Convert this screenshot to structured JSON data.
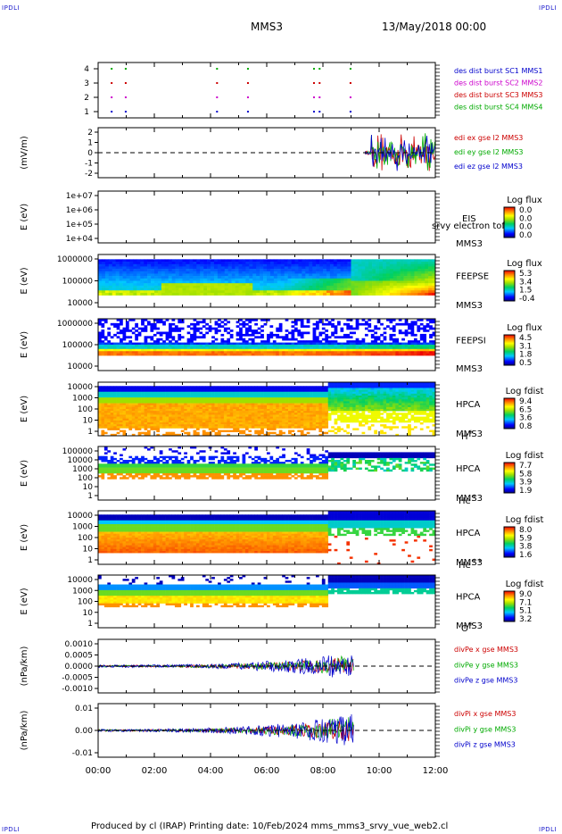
{
  "corner_labels": {
    "tl": "IPDLI",
    "tr": "IPDLI",
    "bl": "IPDLI",
    "br": "IPDLI"
  },
  "header": {
    "spacecraft": "MMS3",
    "date": "13/May/2018 00:00"
  },
  "footer": "Produced by cl (IRAP)   Printing date: 10/Feb/2024   mms_mms3_srvy_vue_web2.cl",
  "chart_data": [
    {
      "type": "scatter",
      "panel": "burst",
      "yticks": [
        "4",
        "3",
        "2",
        "1"
      ],
      "legend": [
        {
          "label": "des dist burst SC1 MMS1",
          "color": "#0000cc"
        },
        {
          "label": "des dist burst SC2 MMS2",
          "color": "#cc00cc"
        },
        {
          "label": "des dist burst SC3 MMS3",
          "color": "#cc0000"
        },
        {
          "label": "des dist burst SC4 MMS4",
          "color": "#00aa00"
        }
      ],
      "burst_times_hours": [
        0.45,
        0.95,
        4.2,
        5.3,
        7.65,
        7.85,
        8.95
      ]
    },
    {
      "type": "line",
      "panel": "edi",
      "ylabel": "(mV/m)",
      "yticks": [
        "2",
        "1",
        "0",
        "-1",
        "-2"
      ],
      "ylim": [
        -2.5,
        2.5
      ],
      "legend": [
        {
          "label": "edi ex gse l2 MMS3",
          "color": "#cc0000"
        },
        {
          "label": "edi ey gse l2 MMS3",
          "color": "#00aa00"
        },
        {
          "label": "edi ez gse l2 MMS3",
          "color": "#0000cc"
        }
      ],
      "data_start_hours": 9.5
    },
    {
      "type": "heatmap",
      "panel": "eis",
      "ylabel": "E (eV)",
      "yticks": [
        "1e+07",
        "1e+06",
        "1e+05",
        "1e+04"
      ],
      "labels": [
        "EIS",
        "srvy electron tof",
        "MMS3"
      ],
      "colorbar_title": "Log flux",
      "colorbar_ticks": [
        "0.0",
        "0.0",
        "0.0",
        "0.0"
      ]
    },
    {
      "type": "heatmap",
      "panel": "feepse",
      "ylabel": "E (eV)",
      "yticks": [
        "1000000",
        "100000",
        "10000"
      ],
      "labels": [
        "FEEPSE",
        "MMS3"
      ],
      "colorbar_title": "Log flux",
      "colorbar_ticks": [
        "5.3",
        "3.4",
        "1.5",
        "-0.4"
      ]
    },
    {
      "type": "heatmap",
      "panel": "feepsi",
      "ylabel": "E (eV)",
      "yticks": [
        "1000000",
        "100000",
        "10000"
      ],
      "labels": [
        "FEEPSI",
        "MMS3"
      ],
      "colorbar_title": "Log flux",
      "colorbar_ticks": [
        "4.5",
        "3.1",
        "1.8",
        "0.5"
      ]
    },
    {
      "type": "heatmap",
      "panel": "hpca_h",
      "ylabel": "E (eV)",
      "yticks": [
        "10000",
        "1000",
        "100",
        "10",
        "1"
      ],
      "labels": [
        "HPCA",
        "MMS3"
      ],
      "species": "H",
      "species_sup": "+",
      "colorbar_title": "Log fdist",
      "colorbar_ticks": [
        "9.4",
        "6.5",
        "3.6",
        "0.8"
      ]
    },
    {
      "type": "heatmap",
      "panel": "hpca_he",
      "ylabel": "E (eV)",
      "yticks": [
        "100000",
        "10000",
        "1000",
        "100",
        "10",
        "1"
      ],
      "labels": [
        "HPCA",
        "MMS3"
      ],
      "species": "He",
      "species_sup": "+",
      "colorbar_title": "Log fdist",
      "colorbar_ticks": [
        "7.7",
        "5.8",
        "3.9",
        "1.9"
      ]
    },
    {
      "type": "heatmap",
      "panel": "hpca_he2",
      "ylabel": "E (eV)",
      "yticks": [
        "10000",
        "1000",
        "100",
        "10",
        "1"
      ],
      "labels": [
        "HPCA",
        "MMS3"
      ],
      "species": "He",
      "species_sup": "++",
      "colorbar_title": "Log fdist",
      "colorbar_ticks": [
        "8.0",
        "5.9",
        "3.8",
        "1.6"
      ]
    },
    {
      "type": "heatmap",
      "panel": "hpca_o",
      "ylabel": "E (eV)",
      "yticks": [
        "10000",
        "1000",
        "100",
        "10",
        "1"
      ],
      "labels": [
        "HPCA",
        "MMS3"
      ],
      "species": "O",
      "species_sup": "+",
      "colorbar_title": "Log fdist",
      "colorbar_ticks": [
        "9.0",
        "7.1",
        "5.1",
        "3.2"
      ]
    },
    {
      "type": "line",
      "panel": "divpe",
      "ylabel": "(nPa/km)",
      "yticks": [
        "0.0010",
        "0.0005",
        "0.0000",
        "-0.0005",
        "-0.0010"
      ],
      "ylim": [
        -0.00125,
        0.00125
      ],
      "legend": [
        {
          "label": "divPe x gse MMS3",
          "color": "#cc0000"
        },
        {
          "label": "divPe y gse MMS3",
          "color": "#00aa00"
        },
        {
          "label": "divPe z gse MMS3",
          "color": "#0000cc"
        }
      ],
      "data_end_hours": 9.1
    },
    {
      "type": "line",
      "panel": "divpi",
      "ylabel": "(nPa/km)",
      "yticks": [
        "0.01",
        "0.00",
        "-0.01"
      ],
      "ylim": [
        -0.015,
        0.015
      ],
      "legend": [
        {
          "label": "divPi x gse MMS3",
          "color": "#cc0000"
        },
        {
          "label": "divPi y gse MMS3",
          "color": "#00aa00"
        },
        {
          "label": "divPi z gse MMS3",
          "color": "#0000cc"
        }
      ],
      "data_end_hours": 9.1
    }
  ],
  "xaxis": {
    "ticks": [
      "00:00",
      "02:00",
      "04:00",
      "06:00",
      "08:00",
      "10:00",
      "12:00"
    ],
    "range_hours": [
      0,
      12
    ]
  }
}
